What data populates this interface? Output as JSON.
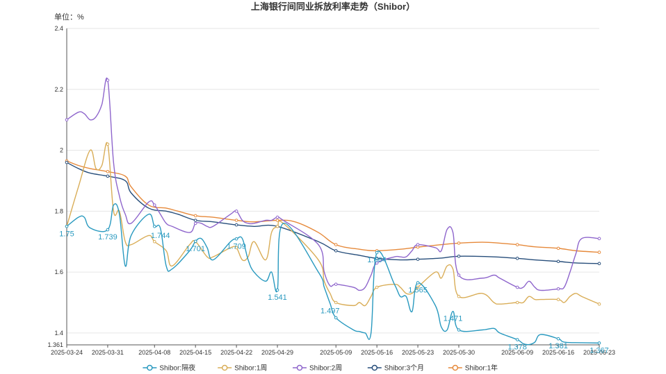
{
  "chart_data": {
    "type": "line",
    "title": "上海银行间同业拆放利率走势（Shibor）",
    "unit_label": "单位：%",
    "ylim": [
      1.361,
      2.4
    ],
    "yticks": [
      "2.4",
      "2.2",
      "2",
      "1.8",
      "1.6",
      "1.4",
      "1.361"
    ],
    "ytick_values": [
      2.4,
      2.2,
      2.0,
      1.8,
      1.6,
      1.4,
      1.361
    ],
    "xlim": [
      "2025-03-24",
      "2025-06-23"
    ],
    "xticks": [
      "2025-03-24",
      "2025-03-31",
      "2025-04-08",
      "2025-04-15",
      "2025-04-22",
      "2025-04-29",
      "2025-05-09",
      "2025-05-16",
      "2025-05-23",
      "2025-05-30",
      "2025-06-09",
      "2025-06-16",
      "2025-06-23"
    ],
    "grid": true,
    "legend_position": "bottom",
    "series": [
      {
        "name": "Shibor:隔夜",
        "color": "#2899bf",
        "points": [
          [
            "2025-03-24",
            1.75
          ],
          [
            "2025-03-26",
            1.78
          ],
          [
            "2025-03-27",
            1.78
          ],
          [
            "2025-03-28",
            1.745
          ],
          [
            "2025-03-31",
            1.739
          ],
          [
            "2025-04-01",
            1.82
          ],
          [
            "2025-04-02",
            1.79
          ],
          [
            "2025-04-03",
            1.62
          ],
          [
            "2025-04-04",
            1.72
          ],
          [
            "2025-04-07",
            1.79
          ],
          [
            "2025-04-08",
            1.75
          ],
          [
            "2025-04-09",
            1.744
          ],
          [
            "2025-04-10",
            1.62
          ],
          [
            "2025-04-11",
            1.61
          ],
          [
            "2025-04-14",
            1.67
          ],
          [
            "2025-04-15",
            1.701
          ],
          [
            "2025-04-16",
            1.71
          ],
          [
            "2025-04-17",
            1.68
          ],
          [
            "2025-04-18",
            1.64
          ],
          [
            "2025-04-21",
            1.7
          ],
          [
            "2025-04-22",
            1.709
          ],
          [
            "2025-04-23",
            1.71
          ],
          [
            "2025-04-24",
            1.64
          ],
          [
            "2025-04-25",
            1.6
          ],
          [
            "2025-04-27",
            1.57
          ],
          [
            "2025-04-28",
            1.6
          ],
          [
            "2025-04-29",
            1.541
          ],
          [
            "2025-04-30",
            1.76
          ],
          [
            "2025-05-06",
            1.6
          ],
          [
            "2025-05-07",
            1.55
          ],
          [
            "2025-05-08",
            1.497
          ],
          [
            "2025-05-09",
            1.45
          ],
          [
            "2025-05-12",
            1.41
          ],
          [
            "2025-05-13",
            1.405
          ],
          [
            "2025-05-14",
            1.4
          ],
          [
            "2025-05-15",
            1.4
          ],
          [
            "2025-05-16",
            1.664
          ],
          [
            "2025-05-19",
            1.56
          ],
          [
            "2025-05-20",
            1.52
          ],
          [
            "2025-05-21",
            1.52
          ],
          [
            "2025-05-22",
            1.47
          ],
          [
            "2025-05-23",
            1.565
          ],
          [
            "2025-05-26",
            1.49
          ],
          [
            "2025-05-27",
            1.42
          ],
          [
            "2025-05-28",
            1.41
          ],
          [
            "2025-05-29",
            1.471
          ],
          [
            "2025-05-30",
            1.41
          ],
          [
            "2025-06-03",
            1.41
          ],
          [
            "2025-06-05",
            1.415
          ],
          [
            "2025-06-06",
            1.4
          ],
          [
            "2025-06-09",
            1.378
          ],
          [
            "2025-06-10",
            1.365
          ],
          [
            "2025-06-11",
            1.362
          ],
          [
            "2025-06-12",
            1.37
          ],
          [
            "2025-06-13",
            1.395
          ],
          [
            "2025-06-16",
            1.381
          ],
          [
            "2025-06-17",
            1.37
          ],
          [
            "2025-06-20",
            1.368
          ],
          [
            "2025-06-23",
            1.367
          ]
        ],
        "labels": [
          [
            "2025-03-24",
            "1.75"
          ],
          [
            "2025-03-31",
            "1.739"
          ],
          [
            "2025-04-09",
            "1.744"
          ],
          [
            "2025-04-15",
            "1.701"
          ],
          [
            "2025-04-22",
            "1.709"
          ],
          [
            "2025-04-29",
            "1.541"
          ],
          [
            "2025-05-08",
            "1.497"
          ],
          [
            "2025-05-16",
            "1.664"
          ],
          [
            "2025-05-23",
            "1.565"
          ],
          [
            "2025-05-29",
            "1.471"
          ],
          [
            "2025-06-09",
            "1.378"
          ],
          [
            "2025-06-16",
            "1.381"
          ],
          [
            "2025-06-23",
            "1.367"
          ]
        ]
      },
      {
        "name": "Shibor:1周",
        "color": "#d9ad57",
        "points": [
          [
            "2025-03-24",
            1.75
          ],
          [
            "2025-03-26",
            1.88
          ],
          [
            "2025-03-28",
            2.0
          ],
          [
            "2025-03-29",
            1.94
          ],
          [
            "2025-03-30",
            1.95
          ],
          [
            "2025-03-31",
            2.02
          ],
          [
            "2025-04-01",
            1.8
          ],
          [
            "2025-04-02",
            1.8
          ],
          [
            "2025-04-03",
            1.7
          ],
          [
            "2025-04-04",
            1.69
          ],
          [
            "2025-04-07",
            1.72
          ],
          [
            "2025-04-08",
            1.7
          ],
          [
            "2025-04-10",
            1.67
          ],
          [
            "2025-04-11",
            1.62
          ],
          [
            "2025-04-14",
            1.69
          ],
          [
            "2025-04-15",
            1.7
          ],
          [
            "2025-04-17",
            1.65
          ],
          [
            "2025-04-18",
            1.65
          ],
          [
            "2025-04-21",
            1.68
          ],
          [
            "2025-04-22",
            1.68
          ],
          [
            "2025-04-23",
            1.64
          ],
          [
            "2025-04-24",
            1.65
          ],
          [
            "2025-04-25",
            1.7
          ],
          [
            "2025-04-27",
            1.64
          ],
          [
            "2025-04-28",
            1.73
          ],
          [
            "2025-04-29",
            1.75
          ],
          [
            "2025-04-30",
            1.76
          ],
          [
            "2025-05-06",
            1.64
          ],
          [
            "2025-05-07",
            1.57
          ],
          [
            "2025-05-08",
            1.53
          ],
          [
            "2025-05-09",
            1.5
          ],
          [
            "2025-05-12",
            1.49
          ],
          [
            "2025-05-13",
            1.5
          ],
          [
            "2025-05-14",
            1.49
          ],
          [
            "2025-05-15",
            1.52
          ],
          [
            "2025-05-16",
            1.55
          ],
          [
            "2025-05-19",
            1.56
          ],
          [
            "2025-05-20",
            1.55
          ],
          [
            "2025-05-21",
            1.53
          ],
          [
            "2025-05-22",
            1.53
          ],
          [
            "2025-05-23",
            1.55
          ],
          [
            "2025-05-26",
            1.6
          ],
          [
            "2025-05-27",
            1.58
          ],
          [
            "2025-05-28",
            1.62
          ],
          [
            "2025-05-29",
            1.61
          ],
          [
            "2025-05-30",
            1.52
          ],
          [
            "2025-06-03",
            1.53
          ],
          [
            "2025-06-05",
            1.5
          ],
          [
            "2025-06-06",
            1.495
          ],
          [
            "2025-06-09",
            1.5
          ],
          [
            "2025-06-10",
            1.5
          ],
          [
            "2025-06-11",
            1.52
          ],
          [
            "2025-06-12",
            1.51
          ],
          [
            "2025-06-13",
            1.51
          ],
          [
            "2025-06-16",
            1.51
          ],
          [
            "2025-06-17",
            1.5
          ],
          [
            "2025-06-18",
            1.52
          ],
          [
            "2025-06-19",
            1.53
          ],
          [
            "2025-06-20",
            1.52
          ],
          [
            "2025-06-23",
            1.495
          ]
        ],
        "labels": []
      },
      {
        "name": "Shibor:2周",
        "color": "#8e65cc",
        "points": [
          [
            "2025-03-24",
            2.1
          ],
          [
            "2025-03-26",
            2.125
          ],
          [
            "2025-03-27",
            2.12
          ],
          [
            "2025-03-28",
            2.1
          ],
          [
            "2025-03-29",
            2.11
          ],
          [
            "2025-03-30",
            2.15
          ],
          [
            "2025-03-31",
            2.23
          ],
          [
            "2025-04-01",
            1.96
          ],
          [
            "2025-04-02",
            1.85
          ],
          [
            "2025-04-03",
            1.79
          ],
          [
            "2025-04-04",
            1.76
          ],
          [
            "2025-04-07",
            1.83
          ],
          [
            "2025-04-08",
            1.82
          ],
          [
            "2025-04-09",
            1.79
          ],
          [
            "2025-04-10",
            1.76
          ],
          [
            "2025-04-11",
            1.75
          ],
          [
            "2025-04-14",
            1.73
          ],
          [
            "2025-04-15",
            1.76
          ],
          [
            "2025-04-16",
            1.76
          ],
          [
            "2025-04-17",
            1.75
          ],
          [
            "2025-04-18",
            1.75
          ],
          [
            "2025-04-21",
            1.79
          ],
          [
            "2025-04-22",
            1.8
          ],
          [
            "2025-04-23",
            1.77
          ],
          [
            "2025-04-24",
            1.76
          ],
          [
            "2025-04-25",
            1.76
          ],
          [
            "2025-04-27",
            1.77
          ],
          [
            "2025-04-28",
            1.77
          ],
          [
            "2025-04-29",
            1.78
          ],
          [
            "2025-04-30",
            1.77
          ],
          [
            "2025-05-06",
            1.69
          ],
          [
            "2025-05-07",
            1.6
          ],
          [
            "2025-05-08",
            1.555
          ],
          [
            "2025-05-09",
            1.56
          ],
          [
            "2025-05-12",
            1.55
          ],
          [
            "2025-05-13",
            1.54
          ],
          [
            "2025-05-14",
            1.55
          ],
          [
            "2025-05-15",
            1.59
          ],
          [
            "2025-05-16",
            1.63
          ],
          [
            "2025-05-19",
            1.65
          ],
          [
            "2025-05-20",
            1.65
          ],
          [
            "2025-05-21",
            1.65
          ],
          [
            "2025-05-22",
            1.67
          ],
          [
            "2025-05-23",
            1.69
          ],
          [
            "2025-05-26",
            1.68
          ],
          [
            "2025-05-27",
            1.67
          ],
          [
            "2025-05-28",
            1.74
          ],
          [
            "2025-05-29",
            1.73
          ],
          [
            "2025-05-30",
            1.59
          ],
          [
            "2025-06-03",
            1.58
          ],
          [
            "2025-06-05",
            1.59
          ],
          [
            "2025-06-06",
            1.58
          ],
          [
            "2025-06-09",
            1.55
          ],
          [
            "2025-06-10",
            1.55
          ],
          [
            "2025-06-11",
            1.57
          ],
          [
            "2025-06-12",
            1.55
          ],
          [
            "2025-06-13",
            1.54
          ],
          [
            "2025-06-16",
            1.545
          ],
          [
            "2025-06-17",
            1.55
          ],
          [
            "2025-06-18",
            1.6
          ],
          [
            "2025-06-19",
            1.66
          ],
          [
            "2025-06-20",
            1.71
          ],
          [
            "2025-06-23",
            1.71
          ]
        ],
        "labels": []
      },
      {
        "name": "Shibor:3个月",
        "color": "#264d7a",
        "points": [
          [
            "2025-03-24",
            1.96
          ],
          [
            "2025-03-26",
            1.94
          ],
          [
            "2025-03-28",
            1.925
          ],
          [
            "2025-03-31",
            1.915
          ],
          [
            "2025-04-03",
            1.9
          ],
          [
            "2025-04-04",
            1.86
          ],
          [
            "2025-04-07",
            1.81
          ],
          [
            "2025-04-10",
            1.8
          ],
          [
            "2025-04-12",
            1.79
          ],
          [
            "2025-04-15",
            1.77
          ],
          [
            "2025-04-18",
            1.765
          ],
          [
            "2025-04-22",
            1.755
          ],
          [
            "2025-04-25",
            1.75
          ],
          [
            "2025-04-29",
            1.75
          ],
          [
            "2025-05-06",
            1.7
          ],
          [
            "2025-05-09",
            1.67
          ],
          [
            "2025-05-13",
            1.655
          ],
          [
            "2025-05-16",
            1.645
          ],
          [
            "2025-05-20",
            1.64
          ],
          [
            "2025-05-23",
            1.642
          ],
          [
            "2025-05-27",
            1.646
          ],
          [
            "2025-05-30",
            1.652
          ],
          [
            "2025-06-05",
            1.65
          ],
          [
            "2025-06-09",
            1.645
          ],
          [
            "2025-06-12",
            1.64
          ],
          [
            "2025-06-16",
            1.635
          ],
          [
            "2025-06-19",
            1.63
          ],
          [
            "2025-06-23",
            1.628
          ]
        ],
        "labels": []
      },
      {
        "name": "Shibor:1年",
        "color": "#e6893a",
        "points": [
          [
            "2025-03-24",
            1.965
          ],
          [
            "2025-03-26",
            1.95
          ],
          [
            "2025-03-28",
            1.94
          ],
          [
            "2025-03-31",
            1.93
          ],
          [
            "2025-04-03",
            1.915
          ],
          [
            "2025-04-04",
            1.88
          ],
          [
            "2025-04-07",
            1.82
          ],
          [
            "2025-04-10",
            1.81
          ],
          [
            "2025-04-12",
            1.8
          ],
          [
            "2025-04-15",
            1.785
          ],
          [
            "2025-04-18",
            1.78
          ],
          [
            "2025-04-22",
            1.77
          ],
          [
            "2025-04-25",
            1.765
          ],
          [
            "2025-04-29",
            1.77
          ],
          [
            "2025-05-02",
            1.765
          ],
          [
            "2025-05-06",
            1.73
          ],
          [
            "2025-05-09",
            1.69
          ],
          [
            "2025-05-13",
            1.675
          ],
          [
            "2025-05-16",
            1.67
          ],
          [
            "2025-05-20",
            1.675
          ],
          [
            "2025-05-23",
            1.682
          ],
          [
            "2025-05-27",
            1.69
          ],
          [
            "2025-05-30",
            1.695
          ],
          [
            "2025-06-03",
            1.698
          ],
          [
            "2025-06-06",
            1.695
          ],
          [
            "2025-06-09",
            1.69
          ],
          [
            "2025-06-12",
            1.683
          ],
          [
            "2025-06-16",
            1.678
          ],
          [
            "2025-06-19",
            1.67
          ],
          [
            "2025-06-23",
            1.665
          ]
        ],
        "labels": []
      }
    ]
  }
}
